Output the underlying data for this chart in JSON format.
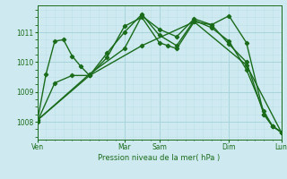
{
  "background_color": "#ceeaf0",
  "grid_color_major": "#a8d4dc",
  "grid_color_minor": "#bce0e8",
  "line_color": "#1a6b1a",
  "marker_style": "D",
  "marker_size": 2.2,
  "line_width": 1.0,
  "xlabel_text": "Pression niveau de la mer( hPa )",
  "ylim": [
    1007.4,
    1011.9
  ],
  "yticks": [
    1008,
    1009,
    1010,
    1011
  ],
  "xlim": [
    0,
    168
  ],
  "x_day_positions": [
    0,
    60,
    84,
    132,
    168
  ],
  "x_day_labels": [
    "Ven",
    "Mar",
    "Sam",
    "Dim",
    "Lun"
  ],
  "series": [
    [
      0,
      1008.0,
      6,
      1009.6,
      12,
      1010.7,
      18,
      1010.75,
      24,
      1010.2,
      30,
      1009.85,
      36,
      1009.55,
      48,
      1010.15,
      60,
      1011.2,
      72,
      1011.5,
      84,
      1010.65,
      90,
      1010.55,
      96,
      1010.45,
      108,
      1011.35,
      120,
      1011.25,
      132,
      1010.6,
      144,
      1010.0,
      156,
      1008.25,
      162,
      1007.85,
      168,
      1007.65
    ],
    [
      0,
      1008.0,
      12,
      1009.3,
      24,
      1009.55,
      36,
      1009.55,
      48,
      1010.3,
      60,
      1011.0,
      72,
      1011.6,
      84,
      1010.9,
      96,
      1010.55,
      108,
      1011.4,
      120,
      1011.15,
      132,
      1010.7,
      144,
      1009.75,
      156,
      1008.35,
      162,
      1007.85,
      168,
      1007.65
    ],
    [
      0,
      1008.05,
      36,
      1009.55,
      72,
      1010.55,
      108,
      1011.35,
      144,
      1009.9,
      168,
      1007.65
    ],
    [
      0,
      1008.05,
      36,
      1009.6,
      60,
      1010.45,
      72,
      1011.55,
      84,
      1011.1,
      96,
      1010.85,
      108,
      1011.45,
      120,
      1011.25,
      132,
      1011.55,
      144,
      1010.65,
      156,
      1008.25,
      162,
      1007.85,
      168,
      1007.65
    ]
  ]
}
